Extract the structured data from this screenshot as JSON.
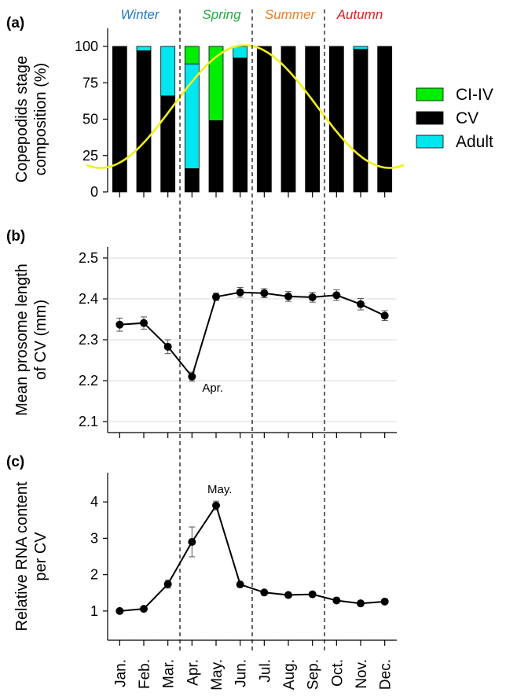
{
  "chart_data": [
    {
      "type": "bar",
      "panel_label": "(a)",
      "ylabel": [
        "Copepodids stage",
        "composition (%)"
      ],
      "ylim": [
        0,
        100
      ],
      "yticks": [
        0,
        25,
        50,
        75,
        100
      ],
      "categories": [
        "Jan.",
        "Feb.",
        "Mar.",
        "Apr.",
        "May.",
        "Jun.",
        "Jul.",
        "Aug.",
        "Sep.",
        "Oct.",
        "Nov.",
        "Dec."
      ],
      "stacked": true,
      "series": [
        {
          "name": "CV",
          "color": "#000000",
          "values": [
            100,
            97,
            66,
            16,
            49,
            92,
            100,
            100,
            100,
            100,
            98,
            100
          ]
        },
        {
          "name": "Adult",
          "color": "#00e5ee",
          "values": [
            0,
            3,
            34,
            72,
            0,
            8,
            0,
            0,
            0,
            0,
            2,
            0
          ]
        },
        {
          "name": "CI-IV",
          "color": "#00ee00",
          "values": [
            0,
            0,
            0,
            12,
            51,
            0,
            0,
            0,
            0,
            0,
            0,
            0
          ]
        }
      ],
      "legend": [
        "CI-IV",
        "CV",
        "Adult"
      ],
      "legend_position": "right",
      "overlay_curve": {
        "color": "#f2ef1a",
        "description": "sinusoidal curve"
      },
      "seasons": [
        {
          "name": "Winter",
          "color": "#1f77c4"
        },
        {
          "name": "Spring",
          "color": "#22aa44"
        },
        {
          "name": "Summer",
          "color": "#ef7d22"
        },
        {
          "name": "Autumn",
          "color": "#e41a1c"
        }
      ]
    },
    {
      "type": "line",
      "panel_label": "(b)",
      "ylabel": [
        "Mean prosome length",
        "of CV (mm)"
      ],
      "ylim": [
        2.1,
        2.5
      ],
      "yticks": [
        "2.1",
        "2.2",
        "2.3",
        "2.4",
        "2.5"
      ],
      "grid": true,
      "categories": [
        "Jan.",
        "Feb.",
        "Mar.",
        "Apr.",
        "May.",
        "Jun.",
        "Jul.",
        "Aug.",
        "Sep.",
        "Oct.",
        "Nov.",
        "Dec."
      ],
      "values": [
        2.337,
        2.341,
        2.283,
        2.21,
        2.405,
        2.416,
        2.414,
        2.406,
        2.404,
        2.409,
        2.387,
        2.359
      ],
      "errors": [
        0.016,
        0.015,
        0.017,
        0.011,
        0.009,
        0.012,
        0.011,
        0.012,
        0.012,
        0.013,
        0.014,
        0.012
      ],
      "annotation": {
        "text": "Apr.",
        "index": 3
      }
    },
    {
      "type": "line",
      "panel_label": "(c)",
      "ylabel": [
        "Relative RNA content",
        "per CV"
      ],
      "ylim": [
        0.5,
        4.5
      ],
      "yticks": [
        "1",
        "2",
        "3",
        "4"
      ],
      "categories": [
        "Jan.",
        "Feb.",
        "Mar.",
        "Apr.",
        "May.",
        "Jun.",
        "Jul.",
        "Aug.",
        "Sep.",
        "Oct.",
        "Nov.",
        "Dec."
      ],
      "values": [
        1.0,
        1.06,
        1.74,
        2.9,
        3.9,
        1.73,
        1.51,
        1.44,
        1.46,
        1.29,
        1.21,
        1.26
      ],
      "errors": [
        0.03,
        0.04,
        0.11,
        0.41,
        0.12,
        0.05,
        0.04,
        0.04,
        0.04,
        0.05,
        0.05,
        0.04
      ],
      "annotation": {
        "text": "May.",
        "index": 4
      }
    }
  ]
}
